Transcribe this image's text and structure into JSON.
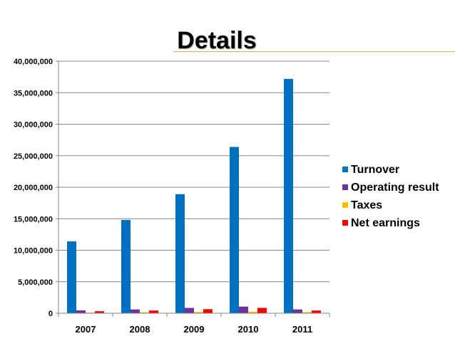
{
  "chart_data": {
    "type": "bar",
    "title": "Details",
    "xlabel": "",
    "ylabel": "",
    "categories": [
      "2007",
      "2008",
      "2009",
      "2010",
      "2011"
    ],
    "ylim": [
      0,
      40000000
    ],
    "yticks": [
      0,
      5000000,
      10000000,
      15000000,
      20000000,
      25000000,
      30000000,
      35000000,
      40000000
    ],
    "ytick_labels": [
      "0",
      "5,000,000",
      "10,000,000",
      "15,000,000",
      "20,000,000",
      "25,000,000",
      "30,000,000",
      "35,000,000",
      "40,000,000"
    ],
    "grid": true,
    "legend_position": "right",
    "series": [
      {
        "name": "Turnover",
        "color": "#0070C0",
        "values": [
          11400000,
          14800000,
          18900000,
          26400000,
          37200000
        ]
      },
      {
        "name": "Operating result",
        "color": "#7030A0",
        "values": [
          450000,
          600000,
          850000,
          1050000,
          600000
        ]
      },
      {
        "name": "Taxes",
        "color": "#FFC000",
        "values": [
          100000,
          150000,
          200000,
          250000,
          180000
        ]
      },
      {
        "name": "Net earnings",
        "color": "#FF0000",
        "values": [
          320000,
          430000,
          650000,
          850000,
          430000
        ]
      }
    ]
  }
}
